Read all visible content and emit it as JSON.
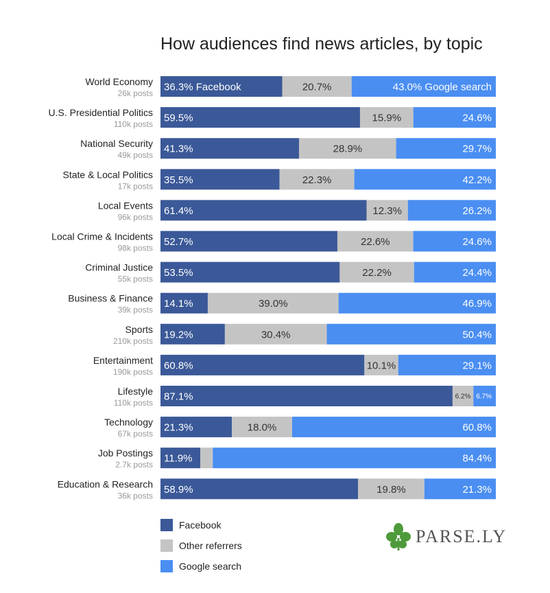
{
  "chart_data": {
    "type": "bar",
    "orientation": "horizontal",
    "stacked": "100%",
    "title": "How audiences find news articles, by topic",
    "categories": [
      {
        "name": "World Economy",
        "posts": "26k posts"
      },
      {
        "name": "U.S. Presidential Politics",
        "posts": "110k posts"
      },
      {
        "name": "National Security",
        "posts": "49k posts"
      },
      {
        "name": "State & Local Politics",
        "posts": "17k posts"
      },
      {
        "name": "Local Events",
        "posts": "96k posts"
      },
      {
        "name": "Local Crime & Incidents",
        "posts": "98k posts"
      },
      {
        "name": "Criminal Justice",
        "posts": "55k posts"
      },
      {
        "name": "Business & Finance",
        "posts": "39k posts"
      },
      {
        "name": "Sports",
        "posts": "210k posts"
      },
      {
        "name": "Entertainment",
        "posts": "190k posts"
      },
      {
        "name": "Lifestyle",
        "posts": "110k posts"
      },
      {
        "name": "Technology",
        "posts": "67k posts"
      },
      {
        "name": "Job Postings",
        "posts": "2.7k posts"
      },
      {
        "name": "Education & Research",
        "posts": "36k posts"
      }
    ],
    "series": [
      {
        "name": "Facebook",
        "color": "#3b5998",
        "values": [
          36.3,
          59.5,
          41.3,
          35.5,
          61.4,
          52.7,
          53.5,
          14.1,
          19.2,
          60.8,
          87.1,
          21.3,
          11.9,
          58.9
        ],
        "labels": [
          "36.3% Facebook",
          "59.5%",
          "41.3%",
          "35.5%",
          "61.4%",
          "52.7%",
          "53.5%",
          "14.1%",
          "19.2%",
          "60.8%",
          "87.1%",
          "21.3%",
          "11.9%",
          "58.9%"
        ]
      },
      {
        "name": "Other referrers",
        "color": "#c4c4c4",
        "values": [
          20.7,
          15.9,
          28.9,
          22.3,
          12.3,
          22.6,
          22.2,
          39.0,
          30.4,
          10.1,
          6.2,
          18.0,
          3.7,
          19.8
        ],
        "labels": [
          "20.7%",
          "15.9%",
          "28.9%",
          "22.3%",
          "12.3%",
          "22.6%",
          "22.2%",
          "39.0%",
          "30.4%",
          "10.1%",
          "6.2%",
          "18.0%",
          "",
          "19.8%"
        ]
      },
      {
        "name": "Google search",
        "color": "#4a8ef2",
        "values": [
          43.0,
          24.6,
          29.7,
          42.2,
          26.2,
          24.6,
          24.4,
          46.9,
          50.4,
          29.1,
          6.7,
          60.8,
          84.4,
          21.3
        ],
        "labels": [
          "43.0% Google search",
          "24.6%",
          "29.7%",
          "42.2%",
          "26.2%",
          "24.6%",
          "24.4%",
          "46.9%",
          "50.4%",
          "29.1%",
          "6.7%",
          "60.8%",
          "84.4%",
          "21.3%"
        ]
      }
    ],
    "xlim": [
      0,
      100
    ],
    "grid": false,
    "legend": {
      "placement": "bottom-left",
      "items": [
        "Facebook",
        "Other referrers",
        "Google search"
      ]
    }
  },
  "brand": {
    "name": "PARSE.LY",
    "leaf_color": "#4e9a3a"
  }
}
